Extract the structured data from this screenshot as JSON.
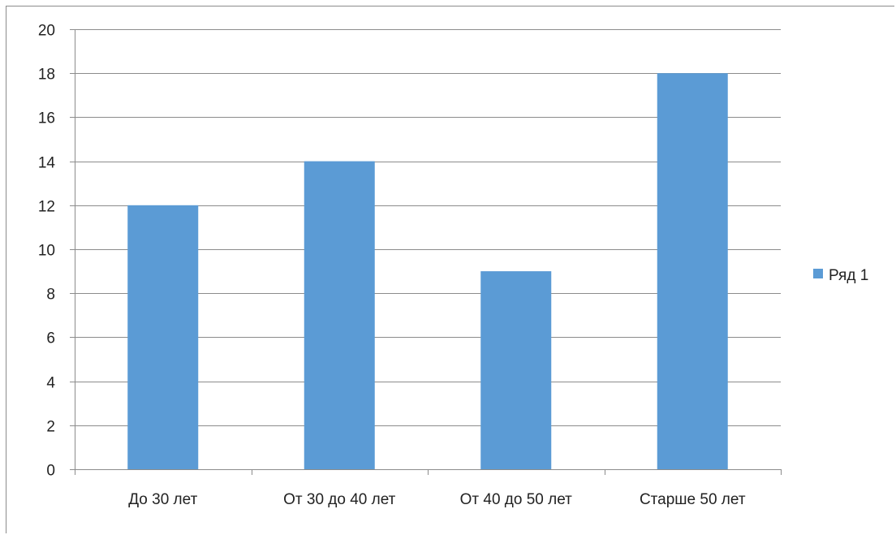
{
  "chart_data": {
    "type": "bar",
    "categories": [
      "До 30 лет",
      "От 30 до 40 лет",
      "От 40 до 50 лет",
      "Старше 50 лет"
    ],
    "series": [
      {
        "name": "Ряд 1",
        "values": [
          12,
          14,
          9,
          18
        ],
        "color": "#5b9bd5"
      }
    ],
    "title": "",
    "xlabel": "",
    "ylabel": "",
    "ylim": [
      0,
      20
    ],
    "yticks": [
      0,
      2,
      4,
      6,
      8,
      10,
      12,
      14,
      16,
      18,
      20
    ],
    "grid": true,
    "legend_position": "right"
  },
  "colors": {
    "bar": "#5b9bd5",
    "gridline": "#8c8c8c",
    "axis": "#8c8c8c",
    "text": "#222222"
  }
}
